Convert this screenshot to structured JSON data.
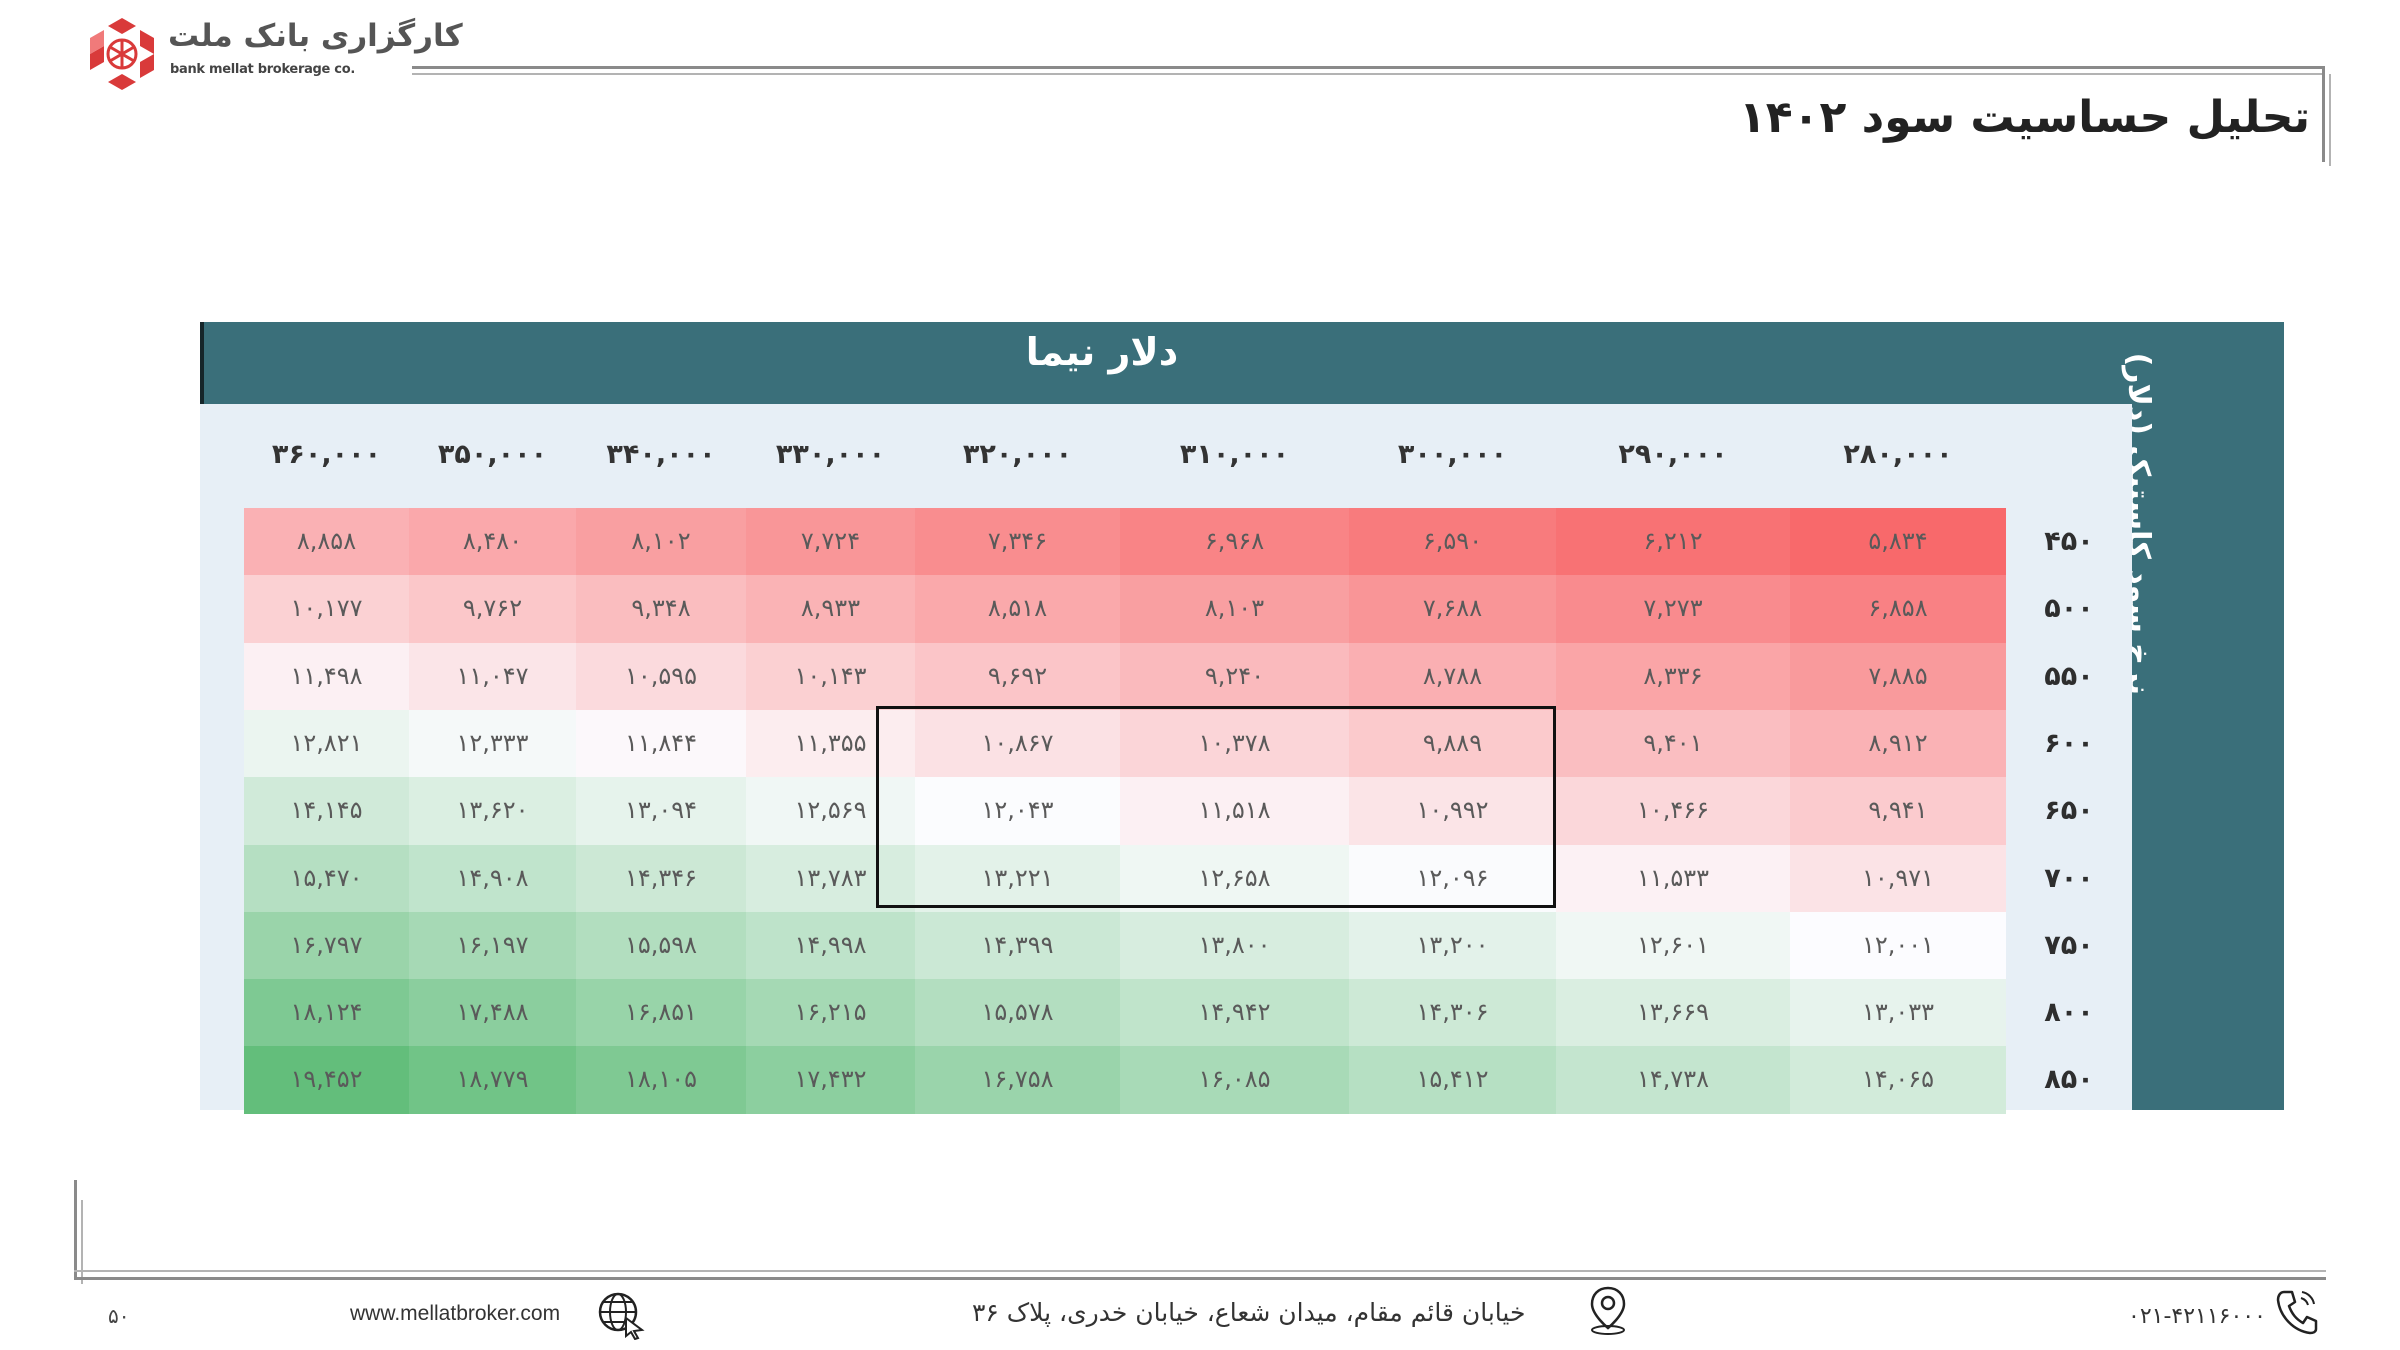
{
  "header": {
    "logo_fa": "کارگزاری بانک ملت",
    "logo_en": "bank mellat brokerage co.",
    "title": "تحلیل حساسیت سود ۱۴۰۲"
  },
  "table": {
    "column_group_title": "دلار نیما",
    "row_group_title": "نرخ سود کاستیک (دلار)",
    "columns": [
      "۲۸۰,۰۰۰",
      "۲۹۰,۰۰۰",
      "۳۰۰,۰۰۰",
      "۳۱۰,۰۰۰",
      "۳۲۰,۰۰۰",
      "۳۳۰,۰۰۰",
      "۳۴۰,۰۰۰",
      "۳۵۰,۰۰۰",
      "۳۶۰,۰۰۰"
    ],
    "rows": [
      {
        "label": "۴۵۰",
        "cells": [
          "۵,۸۳۴",
          "۶,۲۱۲",
          "۶,۵۹۰",
          "۶,۹۶۸",
          "۷,۳۴۶",
          "۷,۷۲۴",
          "۸,۱۰۲",
          "۸,۴۸۰",
          "۸,۸۵۸"
        ]
      },
      {
        "label": "۵۰۰",
        "cells": [
          "۶,۸۵۸",
          "۷,۲۷۳",
          "۷,۶۸۸",
          "۸,۱۰۳",
          "۸,۵۱۸",
          "۸,۹۳۳",
          "۹,۳۴۸",
          "۹,۷۶۲",
          "۱۰,۱۷۷"
        ]
      },
      {
        "label": "۵۵۰",
        "cells": [
          "۷,۸۸۵",
          "۸,۳۳۶",
          "۸,۷۸۸",
          "۹,۲۴۰",
          "۹,۶۹۲",
          "۱۰,۱۴۳",
          "۱۰,۵۹۵",
          "۱۱,۰۴۷",
          "۱۱,۴۹۸"
        ]
      },
      {
        "label": "۶۰۰",
        "cells": [
          "۸,۹۱۲",
          "۹,۴۰۱",
          "۹,۸۸۹",
          "۱۰,۳۷۸",
          "۱۰,۸۶۷",
          "۱۱,۳۵۵",
          "۱۱,۸۴۴",
          "۱۲,۳۳۳",
          "۱۲,۸۲۱"
        ]
      },
      {
        "label": "۶۵۰",
        "cells": [
          "۹,۹۴۱",
          "۱۰,۴۶۶",
          "۱۰,۹۹۲",
          "۱۱,۵۱۸",
          "۱۲,۰۴۳",
          "۱۲,۵۶۹",
          "۱۳,۰۹۴",
          "۱۳,۶۲۰",
          "۱۴,۱۴۵"
        ]
      },
      {
        "label": "۷۰۰",
        "cells": [
          "۱۰,۹۷۱",
          "۱۱,۵۳۳",
          "۱۲,۰۹۶",
          "۱۲,۶۵۸",
          "۱۳,۲۲۱",
          "۱۳,۷۸۳",
          "۱۴,۳۴۶",
          "۱۴,۹۰۸",
          "۱۵,۴۷۰"
        ]
      },
      {
        "label": "۷۵۰",
        "cells": [
          "۱۲,۰۰۱",
          "۱۲,۶۰۱",
          "۱۳,۲۰۰",
          "۱۳,۸۰۰",
          "۱۴,۳۹۹",
          "۱۴,۹۹۸",
          "۱۵,۵۹۸",
          "۱۶,۱۹۷",
          "۱۶,۷۹۷"
        ]
      },
      {
        "label": "۸۰۰",
        "cells": [
          "۱۳,۰۳۳",
          "۱۳,۶۶۹",
          "۱۴,۳۰۶",
          "۱۴,۹۴۲",
          "۱۵,۵۷۸",
          "۱۶,۲۱۵",
          "۱۶,۸۵۱",
          "۱۷,۴۸۸",
          "۱۸,۱۲۴"
        ]
      },
      {
        "label": "۸۵۰",
        "cells": [
          "۱۴,۰۶۵",
          "۱۴,۷۳۸",
          "۱۵,۴۱۲",
          "۱۶,۰۸۵",
          "۱۶,۷۵۸",
          "۱۷,۴۳۲",
          "۱۸,۱۰۵",
          "۱۸,۷۷۹",
          "۱۹,۴۵۲"
        ]
      }
    ],
    "colors": {
      "header_bg": "#3a6f7a",
      "inner_bg": "#e7eff6",
      "low": "#f8696b",
      "mid": "#fcfcff",
      "high": "#63be7b"
    }
  },
  "footer": {
    "page_number": "۵۰",
    "website": "www.mellatbroker.com",
    "address": "خیابان قائم مقام، میدان شعاع، خیابان خدری، پلاک ۳۶",
    "phone": "۰۲۱-۴۲۱۱۶۰۰۰",
    "icons": [
      "globe-icon",
      "location-pin-icon",
      "phone-icon"
    ]
  }
}
